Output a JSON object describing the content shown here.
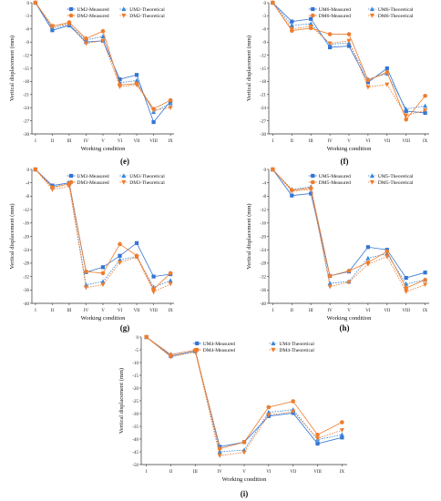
{
  "colors": {
    "um_measured": "#3474d4",
    "um_theoretical": "#3a86d8",
    "dm_measured": "#ee7d2e",
    "dm_theoretical": "#ee7d2e"
  },
  "chart_data": [
    {
      "panel_label": "(e)",
      "type": "line",
      "xlabel": "Working condition",
      "ylabel": "Vertical displacement (mm)",
      "categories": [
        "I",
        "II",
        "III",
        "IV",
        "V",
        "VI",
        "VII",
        "VIII",
        "IX"
      ],
      "ylim": [
        -30,
        0
      ],
      "yticks": [
        0,
        -3,
        -6,
        -9,
        -12,
        -15,
        -18,
        -21,
        -24,
        -27,
        -30
      ],
      "legend_position": "top-right",
      "series": [
        {
          "name": "UM2-Measured",
          "style": "um-measured",
          "values": [
            0,
            -6.3,
            -5.2,
            -9.0,
            -8.7,
            -17.5,
            -16.5,
            -27.3,
            -22.5
          ]
        },
        {
          "name": "UM2-Theoretical",
          "style": "um-theoretical",
          "values": [
            0,
            -5.8,
            -5.0,
            -8.5,
            -7.7,
            -18.3,
            -17.8,
            -25.0,
            -23.0
          ]
        },
        {
          "name": "DM2-Measured",
          "style": "dm-measured",
          "values": [
            0,
            -5.4,
            -4.5,
            -8.2,
            -6.5,
            -18.8,
            -18.5,
            -24.3,
            -22.3
          ]
        },
        {
          "name": "DM2-Theoretical",
          "style": "dm-theoretical",
          "values": [
            0,
            -5.3,
            -4.9,
            -9.3,
            -8.7,
            -19.2,
            -18.8,
            -24.6,
            -24.0
          ]
        }
      ]
    },
    {
      "panel_label": "(f)",
      "type": "line",
      "xlabel": "Working condition",
      "ylabel": "Vertical displacement (mm)",
      "categories": [
        "I",
        "II",
        "III",
        "IV",
        "V",
        "VI",
        "VII",
        "VIII",
        "IX"
      ],
      "ylim": [
        -30,
        0
      ],
      "yticks": [
        0,
        -3,
        -6,
        -9,
        -12,
        -15,
        -18,
        -21,
        -24,
        -27,
        -30
      ],
      "legend_position": "top-right",
      "series": [
        {
          "name": "UM6-Measured",
          "style": "um-measured",
          "values": [
            0,
            -4.3,
            -3.7,
            -10.2,
            -9.9,
            -18.2,
            -15.0,
            -24.8,
            -25.2
          ]
        },
        {
          "name": "UM6-Theoretical",
          "style": "um-theoretical",
          "values": [
            0,
            -5.2,
            -4.8,
            -9.5,
            -9.2,
            -17.5,
            -16.2,
            -24.3,
            -23.6
          ]
        },
        {
          "name": "DM6-Measured",
          "style": "dm-measured",
          "values": [
            0,
            -6.4,
            -5.8,
            -7.2,
            -7.2,
            -17.7,
            -15.9,
            -26.7,
            -21.3
          ]
        },
        {
          "name": "DM6-Theoretical",
          "style": "dm-theoretical",
          "values": [
            0,
            -6.0,
            -5.4,
            -9.3,
            -8.7,
            -19.3,
            -18.7,
            -25.8,
            -24.6
          ]
        }
      ]
    },
    {
      "panel_label": "(g)",
      "type": "line",
      "xlabel": "Working condition",
      "ylabel": "Vertical displacement (mm)",
      "categories": [
        "I",
        "II",
        "III",
        "IV",
        "V",
        "VI",
        "VII",
        "VIII",
        "IX"
      ],
      "ylim": [
        -40,
        0
      ],
      "yticks": [
        0,
        -4,
        -8,
        -12,
        -16,
        -20,
        -24,
        -28,
        -32,
        -36,
        -40
      ],
      "legend_position": "top-right",
      "series": [
        {
          "name": "UM3-Measured",
          "style": "um-measured",
          "values": [
            0,
            -4.8,
            -4.0,
            -30.7,
            -29.2,
            -25.8,
            -22.0,
            -32.0,
            -31.3
          ]
        },
        {
          "name": "UM3-Theoretical",
          "style": "um-theoretical",
          "values": [
            0,
            -5.2,
            -4.3,
            -34.5,
            -33.5,
            -27.0,
            -26.0,
            -35.2,
            -33.2
          ]
        },
        {
          "name": "DM3-Measured",
          "style": "dm-measured",
          "values": [
            0,
            -5.4,
            -4.3,
            -30.5,
            -31.0,
            -22.3,
            -25.8,
            -35.8,
            -31.0
          ]
        },
        {
          "name": "DM3-Theoretical",
          "style": "dm-theoretical",
          "values": [
            0,
            -6.0,
            -5.0,
            -35.3,
            -34.4,
            -27.8,
            -26.2,
            -36.6,
            -34.2
          ]
        }
      ]
    },
    {
      "panel_label": "(h)",
      "type": "line",
      "xlabel": "Working condition",
      "ylabel": "Vertical displacement (mm)",
      "categories": [
        "I",
        "II",
        "III",
        "IV",
        "V",
        "VI",
        "VII",
        "VIII",
        "IX"
      ],
      "ylim": [
        -40,
        0
      ],
      "yticks": [
        0,
        -4,
        -8,
        -12,
        -16,
        -20,
        -24,
        -28,
        -32,
        -36,
        -40
      ],
      "legend_position": "top-right",
      "series": [
        {
          "name": "UM5-Measured",
          "style": "um-measured",
          "values": [
            0,
            -7.8,
            -7.2,
            -31.8,
            -30.5,
            -23.2,
            -24.0,
            -32.4,
            -30.8
          ]
        },
        {
          "name": "UM5-Theoretical",
          "style": "um-theoretical",
          "values": [
            0,
            -6.0,
            -5.2,
            -34.0,
            -33.5,
            -26.5,
            -25.2,
            -34.2,
            -33.0
          ]
        },
        {
          "name": "DM5-Measured",
          "style": "dm-measured",
          "values": [
            0,
            -6.2,
            -5.6,
            -31.8,
            -30.3,
            -27.8,
            -24.5,
            -35.4,
            -33.0
          ]
        },
        {
          "name": "DM5-Theoretical",
          "style": "dm-theoretical",
          "values": [
            0,
            -6.5,
            -6.0,
            -35.0,
            -33.7,
            -28.3,
            -26.0,
            -36.5,
            -34.4
          ]
        }
      ]
    },
    {
      "panel_label": "(i)",
      "type": "line",
      "xlabel": "Working condition",
      "ylabel": "Vertical displacement (mm)",
      "categories": [
        "I",
        "II",
        "III",
        "IV",
        "V",
        "VI",
        "VII",
        "VIII",
        "IX"
      ],
      "ylim": [
        -50,
        0
      ],
      "yticks": [
        0,
        -5,
        -10,
        -15,
        -20,
        -25,
        -30,
        -35,
        -40,
        -45,
        -50
      ],
      "legend_position": "top-right",
      "series": [
        {
          "name": "UM4-Measured",
          "style": "um-measured",
          "values": [
            0,
            -7.5,
            -5.6,
            -43.0,
            -41.2,
            -31.0,
            -29.8,
            -41.8,
            -39.4
          ]
        },
        {
          "name": "UM4-Theoretical",
          "style": "um-theoretical",
          "values": [
            0,
            -6.8,
            -5.2,
            -45.0,
            -44.3,
            -29.5,
            -28.5,
            -40.2,
            -38.3
          ]
        },
        {
          "name": "DM4-Measured",
          "style": "dm-measured",
          "values": [
            0,
            -7.0,
            -5.1,
            -43.8,
            -41.2,
            -27.5,
            -25.2,
            -38.3,
            -33.4
          ]
        },
        {
          "name": "DM4-Theoretical",
          "style": "dm-theoretical",
          "values": [
            0,
            -7.8,
            -5.8,
            -46.5,
            -45.2,
            -30.5,
            -29.2,
            -39.8,
            -36.5
          ]
        }
      ]
    }
  ]
}
